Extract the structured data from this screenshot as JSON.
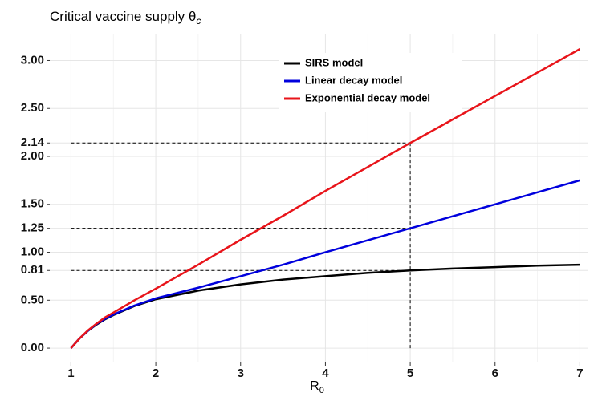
{
  "chart_data": {
    "type": "line",
    "title": "Critical vaccine supply θ",
    "title_subscript": "c",
    "x_label": "R",
    "x_label_subscript": "0",
    "x": [
      1,
      1.1,
      1.2,
      1.3,
      1.4,
      1.5,
      1.75,
      2,
      2.5,
      3,
      3.5,
      4,
      4.5,
      5,
      5.5,
      6,
      6.5,
      7
    ],
    "series": [
      {
        "name": "SIRS model",
        "color": "#000000",
        "values": [
          0,
          0.1,
          0.18,
          0.245,
          0.3,
          0.345,
          0.44,
          0.51,
          0.6,
          0.665,
          0.715,
          0.75,
          0.785,
          0.81,
          0.83,
          0.845,
          0.86,
          0.87
        ]
      },
      {
        "name": "Linear decay model",
        "color": "#0000dd",
        "values": [
          0,
          0.1,
          0.18,
          0.25,
          0.305,
          0.35,
          0.445,
          0.52,
          0.63,
          0.75,
          0.87,
          1.0,
          1.125,
          1.25,
          1.375,
          1.5,
          1.625,
          1.75
        ]
      },
      {
        "name": "Exponential decay model",
        "color": "#e8141a",
        "values": [
          0,
          0.1,
          0.185,
          0.255,
          0.32,
          0.37,
          0.5,
          0.62,
          0.87,
          1.13,
          1.38,
          1.64,
          1.89,
          2.14,
          2.385,
          2.63,
          2.875,
          3.12
        ]
      }
    ],
    "reference_lines": {
      "x": 5,
      "y": [
        0.81,
        1.25,
        2.14
      ]
    },
    "xlim": [
      0.75,
      7.1
    ],
    "xticks": [
      1,
      2,
      3,
      4,
      5,
      6,
      7
    ],
    "ylim": [
      -0.15,
      3.28
    ],
    "yticks": [
      {
        "value": 0,
        "label": "0.00"
      },
      {
        "value": 0.5,
        "label": "0.50"
      },
      0.81,
      {
        "value": 1,
        "label": "1.00"
      },
      1.25,
      {
        "value": 1.5,
        "label": "1.50"
      },
      {
        "value": 2,
        "label": "2.00"
      },
      2.14,
      {
        "value": 2.5,
        "label": "2.50"
      },
      {
        "value": 3,
        "label": "3.00"
      }
    ],
    "grid": true,
    "legend": "top"
  }
}
